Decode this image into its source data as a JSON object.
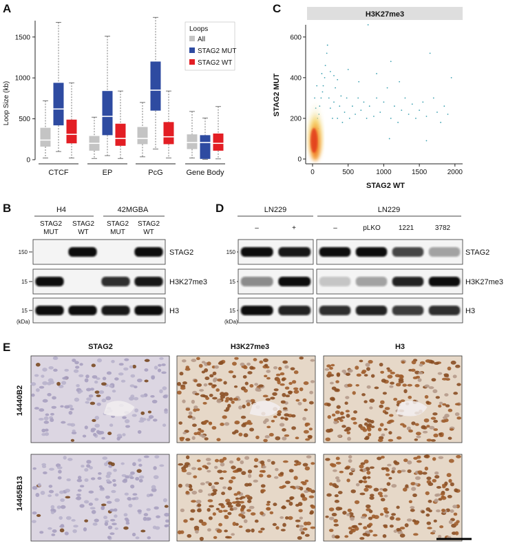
{
  "panels": {
    "A": {
      "letter": "A",
      "chart_data": {
        "type": "boxplot",
        "ylabel": "Loop Size (kb)",
        "ylim": [
          0,
          1700
        ],
        "yticks": [
          0,
          500,
          1000,
          1500
        ],
        "categories": [
          "CTCF",
          "EP",
          "PcG",
          "Gene Body"
        ],
        "legend": {
          "title": "Loops",
          "position": "top-right",
          "items": [
            "All",
            "STAG2 MUT",
            "STAG2 WT"
          ]
        },
        "colors": {
          "All": "#c4c4c4",
          "STAG2 MUT": "#2e4ba1",
          "STAG2 WT": "#e31e24"
        },
        "series": [
          {
            "name": "All",
            "boxes": [
              {
                "min": 20,
                "q1": 160,
                "median": 240,
                "q3": 390,
                "max": 720
              },
              {
                "min": 15,
                "q1": 110,
                "median": 200,
                "q3": 290,
                "max": 520
              },
              {
                "min": 35,
                "q1": 190,
                "median": 260,
                "q3": 400,
                "max": 700
              },
              {
                "min": 20,
                "q1": 130,
                "median": 210,
                "q3": 310,
                "max": 590
              }
            ]
          },
          {
            "name": "STAG2 MUT",
            "boxes": [
              {
                "min": 100,
                "q1": 420,
                "median": 620,
                "q3": 940,
                "max": 1680
              },
              {
                "min": 50,
                "q1": 300,
                "median": 530,
                "q3": 840,
                "max": 1510
              },
              {
                "min": 130,
                "q1": 600,
                "median": 850,
                "q3": 1200,
                "max": 1740
              },
              {
                "min": 5,
                "q1": 10,
                "median": 210,
                "q3": 300,
                "max": 510
              }
            ]
          },
          {
            "name": "STAG2 WT",
            "boxes": [
              {
                "min": 20,
                "q1": 200,
                "median": 310,
                "q3": 490,
                "max": 940
              },
              {
                "min": 15,
                "q1": 170,
                "median": 260,
                "q3": 440,
                "max": 840
              },
              {
                "min": 20,
                "q1": 190,
                "median": 280,
                "q3": 460,
                "max": 840
              },
              {
                "min": 10,
                "q1": 110,
                "median": 200,
                "q3": 320,
                "max": 650
              }
            ]
          }
        ]
      }
    },
    "C": {
      "letter": "C",
      "chart_data": {
        "type": "scatter",
        "title": "H3K27me3",
        "xlabel": "STAG2 WT",
        "ylabel": "STAG2 MUT",
        "xlim": [
          0,
          2050
        ],
        "ylim": [
          0,
          650
        ],
        "xticks": [
          0,
          500,
          1000,
          1500,
          2000
        ],
        "yticks": [
          0,
          200,
          400,
          600
        ],
        "point_color": "#3a9fb0",
        "density_colors": [
          "#f1e6a6",
          "#f8b64b",
          "#e33d1f"
        ],
        "sample_points": [
          [
            40,
            40
          ],
          [
            60,
            90
          ],
          [
            80,
            150
          ],
          [
            90,
            220
          ],
          [
            100,
            260
          ],
          [
            120,
            300
          ],
          [
            140,
            330
          ],
          [
            150,
            360
          ],
          [
            170,
            400
          ],
          [
            180,
            460
          ],
          [
            200,
            520
          ],
          [
            210,
            560
          ],
          [
            230,
            300
          ],
          [
            250,
            250
          ],
          [
            280,
            200
          ],
          [
            300,
            280
          ],
          [
            320,
            350
          ],
          [
            350,
            200
          ],
          [
            380,
            260
          ],
          [
            400,
            310
          ],
          [
            420,
            180
          ],
          [
            450,
            230
          ],
          [
            480,
            300
          ],
          [
            520,
            200
          ],
          [
            560,
            260
          ],
          [
            600,
            220
          ],
          [
            640,
            300
          ],
          [
            680,
            240
          ],
          [
            720,
            280
          ],
          [
            760,
            200
          ],
          [
            800,
            260
          ],
          [
            860,
            210
          ],
          [
            900,
            300
          ],
          [
            950,
            230
          ],
          [
            1000,
            280
          ],
          [
            1050,
            350
          ],
          [
            1100,
            200
          ],
          [
            1150,
            260
          ],
          [
            1200,
            180
          ],
          [
            1250,
            240
          ],
          [
            1300,
            300
          ],
          [
            1350,
            220
          ],
          [
            1400,
            270
          ],
          [
            1450,
            200
          ],
          [
            1500,
            240
          ],
          [
            1550,
            280
          ],
          [
            1600,
            210
          ],
          [
            1650,
            520
          ],
          [
            1700,
            300
          ],
          [
            1750,
            230
          ],
          [
            1800,
            180
          ],
          [
            1850,
            260
          ],
          [
            1900,
            220
          ],
          [
            1950,
            400
          ],
          [
            1100,
            480
          ],
          [
            780,
            660
          ],
          [
            1080,
            100
          ],
          [
            1600,
            90
          ],
          [
            130,
            420
          ],
          [
            60,
            360
          ],
          [
            30,
            300
          ],
          [
            45,
            250
          ],
          [
            70,
            200
          ],
          [
            250,
            430
          ],
          [
            300,
            410
          ],
          [
            350,
            390
          ],
          [
            500,
            440
          ],
          [
            650,
            380
          ],
          [
            900,
            420
          ],
          [
            1220,
            380
          ]
        ]
      }
    },
    "B": {
      "letter": "B",
      "groups": [
        {
          "name": "H4",
          "lanes": [
            "STAG2\nMUT",
            "STAG2\nWT"
          ]
        },
        {
          "name": "42MGBA",
          "lanes": [
            "STAG2\nMUT",
            "STAG2\nWT"
          ]
        }
      ],
      "lane_line1": [
        "STAG2",
        "STAG2",
        "STAG2",
        "STAG2"
      ],
      "lane_line2": [
        "MUT",
        "WT",
        "MUT",
        "WT"
      ],
      "rows": [
        {
          "label": "STAG2",
          "marker": "150",
          "band_intensity": [
            0.0,
            1.0,
            0.0,
            1.0
          ]
        },
        {
          "label": "H3K27me3",
          "marker": "15",
          "band_intensity": [
            1.0,
            0.0,
            0.85,
            0.95
          ]
        },
        {
          "label": "H3",
          "marker": "15",
          "band_intensity": [
            1.0,
            1.0,
            0.95,
            1.0
          ]
        }
      ],
      "unit": "(kDa)"
    },
    "D": {
      "letter": "D",
      "groups": [
        {
          "name": "LN229",
          "lanes": [
            "–",
            "+"
          ]
        },
        {
          "name": "LN229",
          "lanes": [
            "–",
            "pLKO",
            "1221",
            "3782"
          ]
        }
      ],
      "rows": [
        {
          "label": "STAG2",
          "marker": "150",
          "band_intensity": [
            1.0,
            0.95,
            1.0,
            1.0,
            0.75,
            0.35
          ]
        },
        {
          "label": "H3K27me3",
          "marker": "15",
          "band_intensity": [
            0.45,
            1.0,
            0.2,
            0.35,
            0.9,
            1.0
          ]
        },
        {
          "label": "H3",
          "marker": "15",
          "band_intensity": [
            1.0,
            0.9,
            0.85,
            0.9,
            0.8,
            0.85
          ]
        }
      ],
      "unit": "(kDa)"
    },
    "E": {
      "letter": "E",
      "columns": [
        "STAG2",
        "H3K27me3",
        "H3"
      ],
      "rows": [
        "14440B2",
        "14465B13"
      ],
      "tile_styles": [
        [
          "sparse",
          "dense",
          "dense"
        ],
        [
          "sparse",
          "dense",
          "dense"
        ]
      ]
    }
  }
}
